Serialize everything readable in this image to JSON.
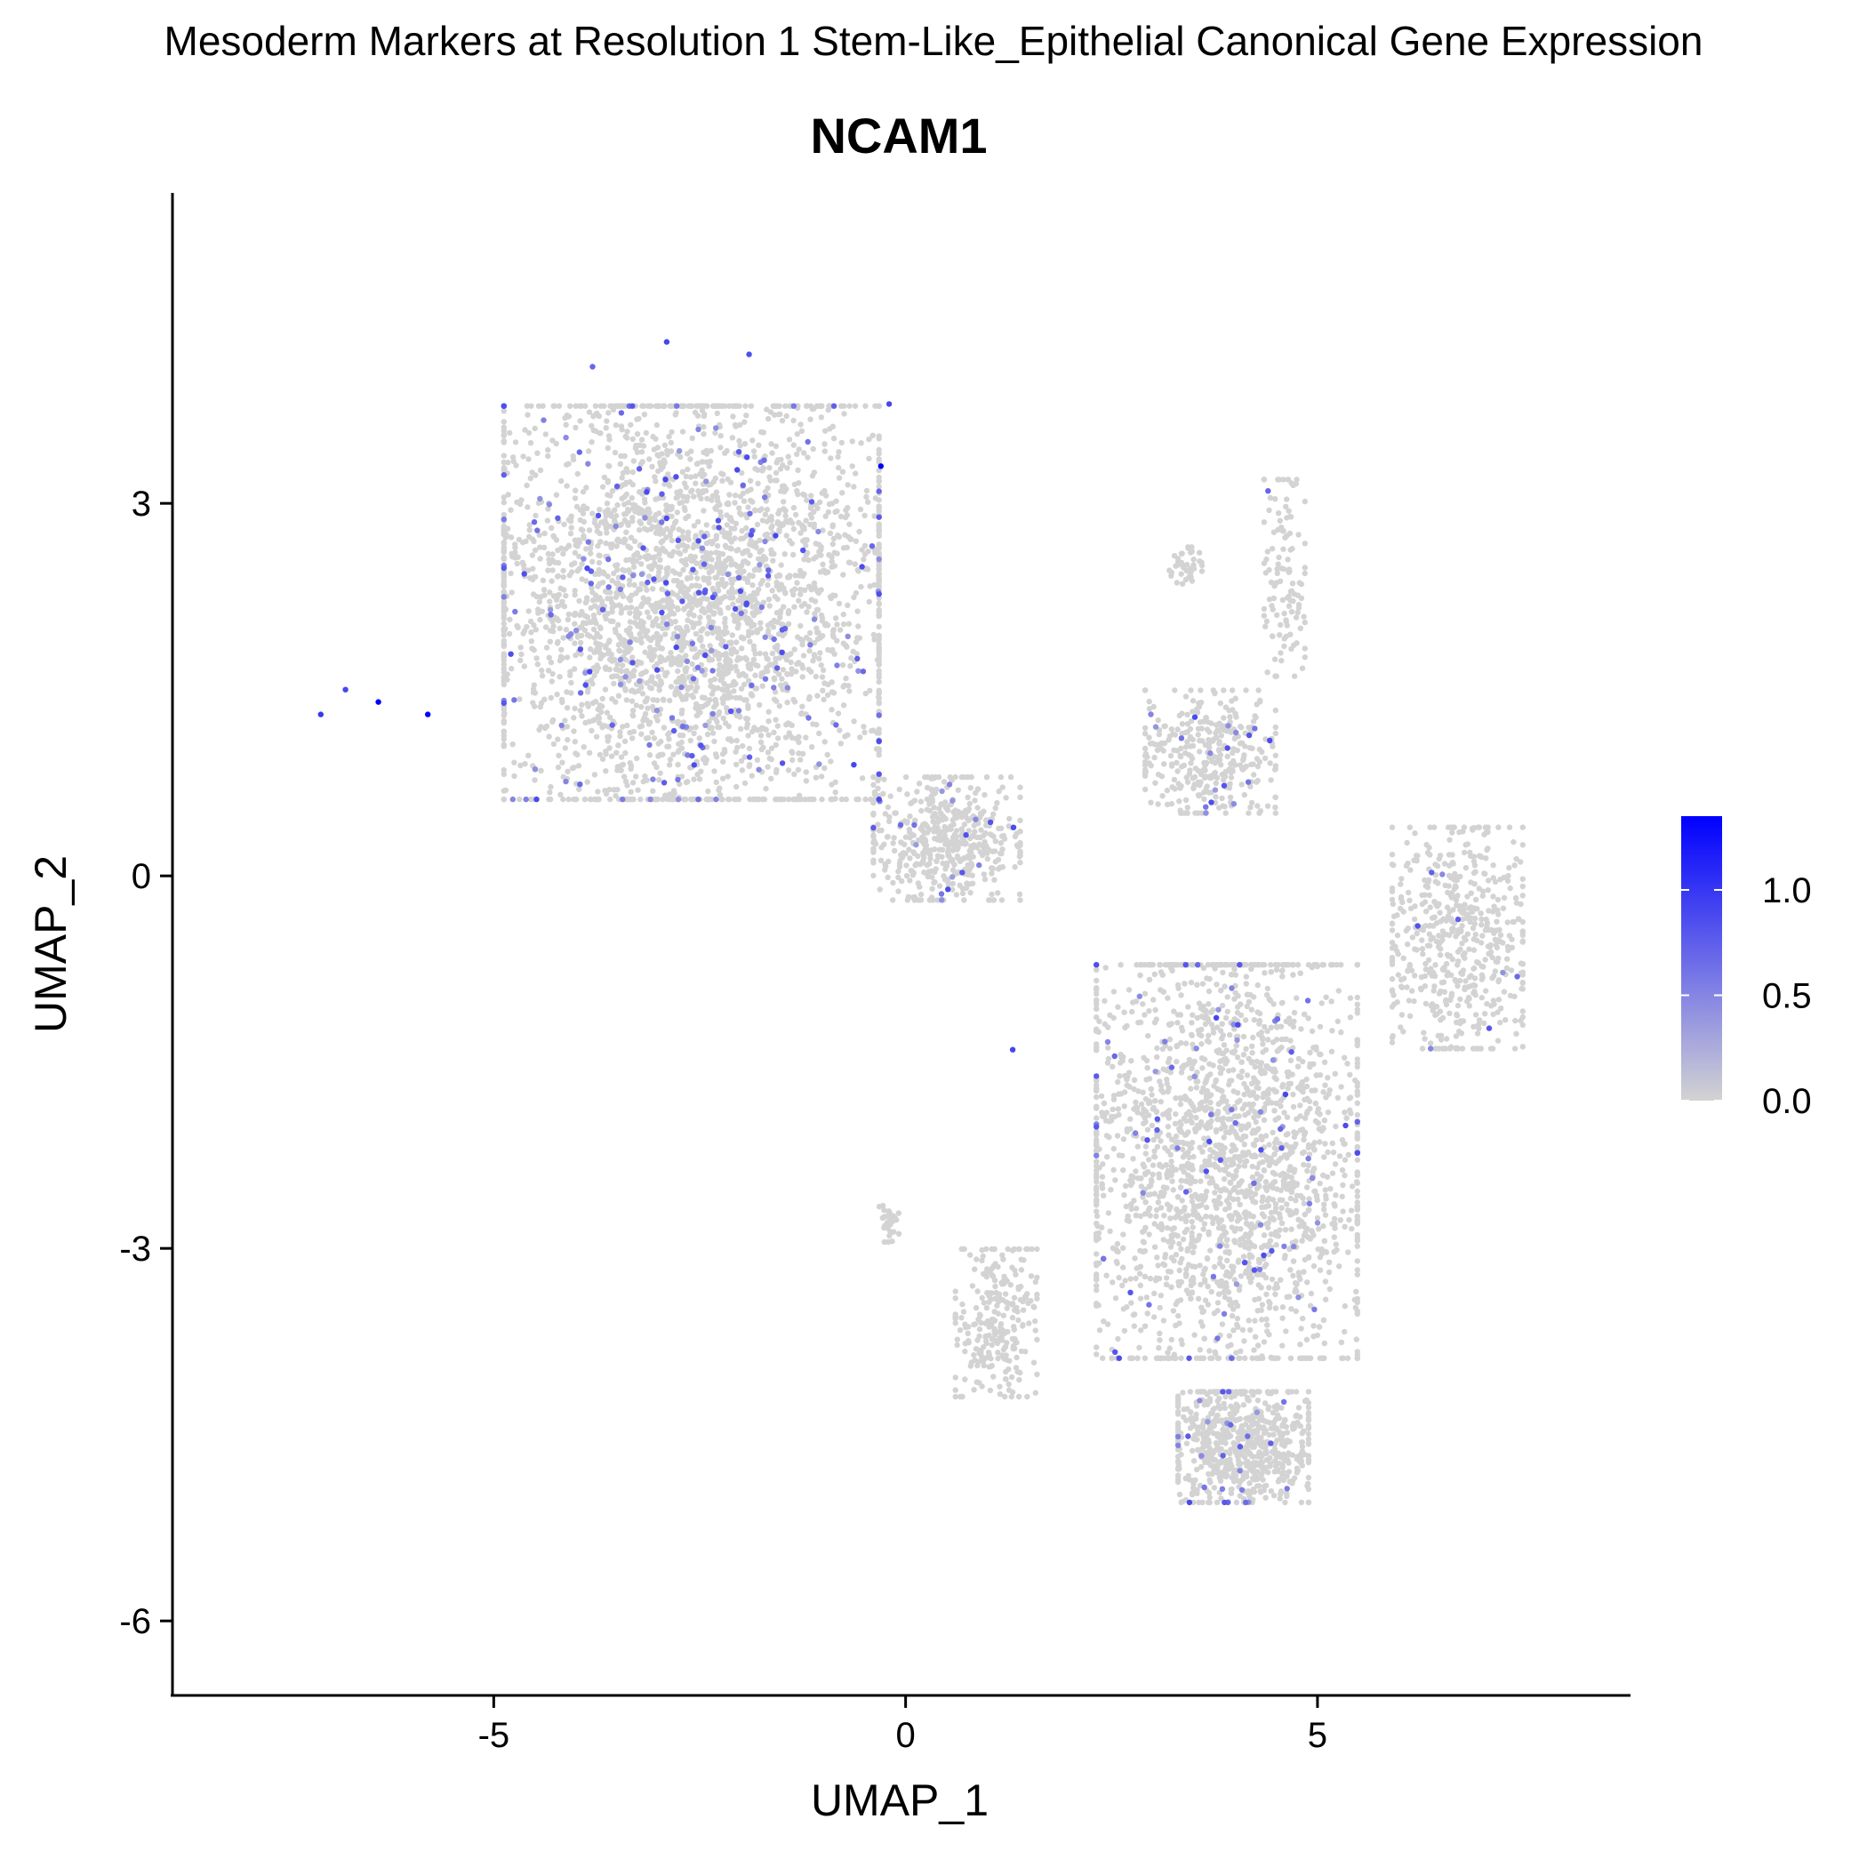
{
  "chart_data": {
    "type": "scatter",
    "suptitle": "Mesoderm Markers at Resolution 1 Stem-Like_Epithelial Canonical Gene Expression",
    "title": "NCAM1",
    "xlabel": "UMAP_1",
    "ylabel": "UMAP_2",
    "xlim": [
      -8.9,
      8.8
    ],
    "ylim": [
      -6.6,
      5.5
    ],
    "xticks": [
      -5,
      0,
      5
    ],
    "xtick_labels": [
      "-5",
      "0",
      "5"
    ],
    "yticks": [
      -6,
      -3,
      0,
      3
    ],
    "ytick_labels": [
      "-6",
      "-3",
      "0",
      "3"
    ],
    "grid": false,
    "legend": {
      "position": "right",
      "type": "colorbar",
      "min": 0.0,
      "max": 1.35,
      "ticks": [
        0.0,
        0.5,
        1.0
      ],
      "tick_labels": [
        "0.0",
        "0.5",
        "1.0"
      ],
      "low_color": "#d3d3d3",
      "high_color": "#0000ff"
    },
    "clusters": [
      {
        "name": "upper-left",
        "center": [
          -2.6,
          2.2
        ],
        "spread": [
          2.3,
          1.6
        ],
        "n": 3200,
        "expr_rate": 0.055
      },
      {
        "name": "bridge",
        "center": [
          0.5,
          0.3
        ],
        "spread": [
          0.9,
          0.5
        ],
        "n": 500,
        "expr_rate": 0.035
      },
      {
        "name": "lower-right-body",
        "center": [
          3.9,
          -2.3
        ],
        "spread": [
          1.6,
          1.6
        ],
        "n": 2400,
        "expr_rate": 0.03
      },
      {
        "name": "lower-right-bottom",
        "center": [
          4.1,
          -4.6
        ],
        "spread": [
          0.8,
          0.45
        ],
        "n": 700,
        "expr_rate": 0.02
      },
      {
        "name": "right-arm",
        "center": [
          6.7,
          -0.5
        ],
        "spread": [
          0.8,
          0.9
        ],
        "n": 550,
        "expr_rate": 0.015
      },
      {
        "name": "mid-right",
        "center": [
          3.7,
          1.0
        ],
        "spread": [
          0.8,
          0.5
        ],
        "n": 350,
        "expr_rate": 0.04
      },
      {
        "name": "lower-left-tail",
        "center": [
          1.1,
          -3.6
        ],
        "spread": [
          0.5,
          0.6
        ],
        "n": 260,
        "expr_rate": 0.0
      },
      {
        "name": "small-left-tail",
        "center": [
          -0.2,
          -2.8
        ],
        "spread": [
          0.12,
          0.15
        ],
        "n": 40,
        "expr_rate": 0.0
      },
      {
        "name": "top-right-strand",
        "center": [
          4.6,
          2.4
        ],
        "spread": [
          0.25,
          0.8
        ],
        "n": 120,
        "expr_rate": 0.0
      },
      {
        "name": "small-top-cluster",
        "center": [
          3.4,
          2.5
        ],
        "spread": [
          0.2,
          0.15
        ],
        "n": 40,
        "expr_rate": 0.0
      }
    ],
    "expressed_points": [
      {
        "x": -6.4,
        "y": 1.4,
        "value": 1.35
      },
      {
        "x": -5.8,
        "y": 1.3,
        "value": 1.35
      },
      {
        "x": -0.3,
        "y": 3.3,
        "value": 1.35
      },
      {
        "x": -7.1,
        "y": 1.3,
        "value": 1.0
      },
      {
        "x": -6.8,
        "y": 1.5,
        "value": 0.9
      },
      {
        "x": -2.9,
        "y": 4.3,
        "value": 0.9
      },
      {
        "x": -1.9,
        "y": 4.2,
        "value": 0.85
      },
      {
        "x": -0.2,
        "y": 3.8,
        "value": 0.9
      },
      {
        "x": 1.3,
        "y": -1.4,
        "value": 0.9
      },
      {
        "x": -1.5,
        "y": 1.8,
        "value": 0.85
      },
      {
        "x": -3.8,
        "y": 4.1,
        "value": 0.7
      },
      {
        "x": 4.4,
        "y": 3.1,
        "value": 0.7
      }
    ]
  }
}
